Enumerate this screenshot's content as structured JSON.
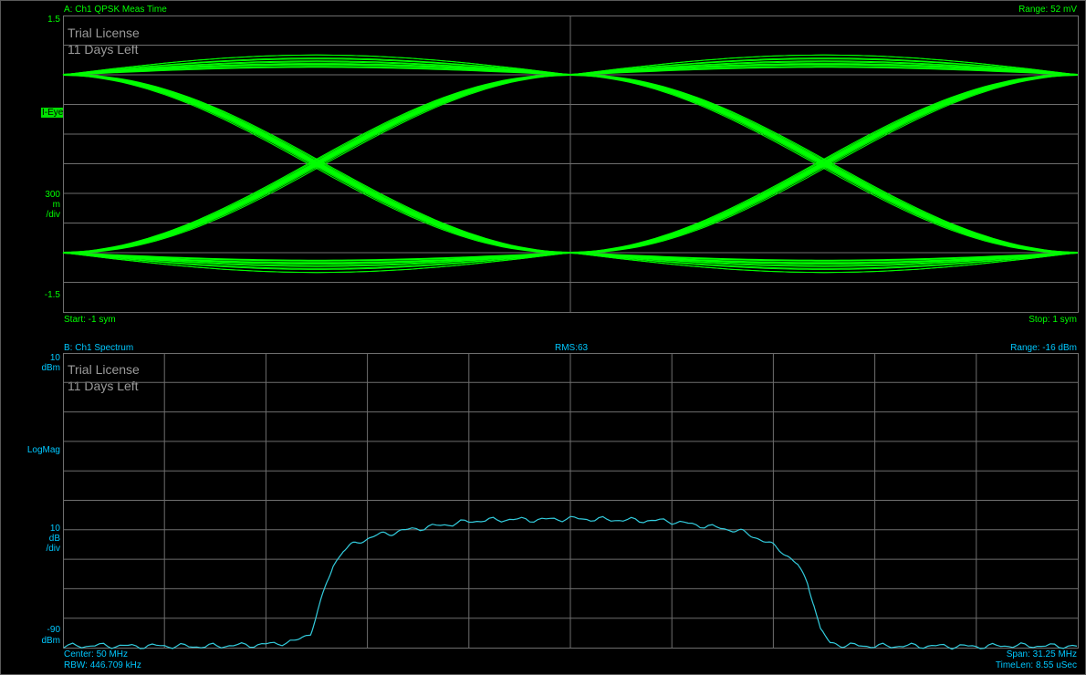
{
  "colors": {
    "eye_trace": "#00ff00",
    "spectrum_trace": "#33ccdd",
    "grid": "#6e6e6e",
    "label_a": "#00ff00",
    "label_b": "#00c8ff"
  },
  "panel_a": {
    "title": "A: Ch1 QPSK Meas Time",
    "range": "Range: 52 mV",
    "y_top": "1.5",
    "trace_label": "I-Eye",
    "scale_value": "300",
    "scale_unit1": "m",
    "scale_unit2": "/div",
    "y_bottom": "-1.5",
    "start": "Start: -1  sym",
    "stop": "Stop: 1  sym",
    "watermark1": "Trial License",
    "watermark2": "11 Days Left"
  },
  "panel_b": {
    "title": "B: Ch1 Spectrum",
    "rms": "RMS:63",
    "range": "Range: -16 dBm",
    "y_top_value": "10",
    "y_top_unit": "dBm",
    "format": "LogMag",
    "scale_value": "10",
    "scale_unit1": "dB",
    "scale_unit2": "/div",
    "y_bottom_value": "-90",
    "y_bottom_unit": "dBm",
    "center": "Center: 50 MHz",
    "rbw": "RBW: 446.709 kHz",
    "span": "Span: 31.25 MHz",
    "timelen": "TimeLen: 8.55 uSec",
    "watermark1": "Trial License",
    "watermark2": "11 Days Left"
  },
  "chart_data": [
    {
      "type": "line",
      "title": "A: Ch1 QPSK Meas Time",
      "xlabel": "sym",
      "ylabel": "I-Eye",
      "xlim": [
        -1,
        1
      ],
      "ylim": [
        -1.5,
        1.5
      ],
      "grid": true,
      "description": "QPSK I-channel eye diagram; traces transition between +0.9 and -0.9 with crossings near x=-0.5 and x=0.5, converging at x=0",
      "levels": [
        0.9,
        -0.9
      ],
      "crossings": [
        -0.5,
        0.5
      ],
      "converge_points": [
        -1,
        0,
        1
      ]
    },
    {
      "type": "line",
      "title": "B: Ch1 Spectrum",
      "ylabel": "LogMag",
      "xlim": [
        34.375,
        65.625
      ],
      "ylim": [
        -90,
        10
      ],
      "grid": true,
      "x_unit": "MHz",
      "y_unit": "dBm",
      "series": [
        {
          "x": [
            34.4,
            35.5,
            36.5,
            37.5,
            38.5,
            39.5,
            40.5,
            41.5,
            42.0,
            42.3,
            42.5,
            42.7,
            43.0,
            43.5,
            44.0,
            44.5,
            45.0,
            46.0,
            47.0,
            48.0,
            49.0,
            50.0,
            51.0,
            52.0,
            53.0,
            54.0,
            55.0,
            55.5,
            56.0,
            56.5,
            57.0,
            57.3,
            57.5,
            57.7,
            58.0,
            58.5,
            59.5,
            60.5,
            61.5,
            62.5,
            63.5,
            64.5,
            65.6
          ],
          "y": [
            -89.5,
            -89.3,
            -89.5,
            -89.4,
            -89.6,
            -89.3,
            -89.0,
            -88.0,
            -85.0,
            -75.0,
            -68.0,
            -62.0,
            -57.0,
            -54.0,
            -52.0,
            -51.0,
            -50.0,
            -48.5,
            -47.0,
            -46.5,
            -46.6,
            -46.2,
            -46.5,
            -46.8,
            -47.0,
            -48.5,
            -50.0,
            -51.5,
            -54.0,
            -57.0,
            -62.0,
            -68.0,
            -75.0,
            -84.0,
            -88.5,
            -89.2,
            -89.5,
            -89.4,
            -89.5,
            -89.6,
            -89.3,
            -89.4,
            -89.5
          ]
        }
      ]
    }
  ]
}
